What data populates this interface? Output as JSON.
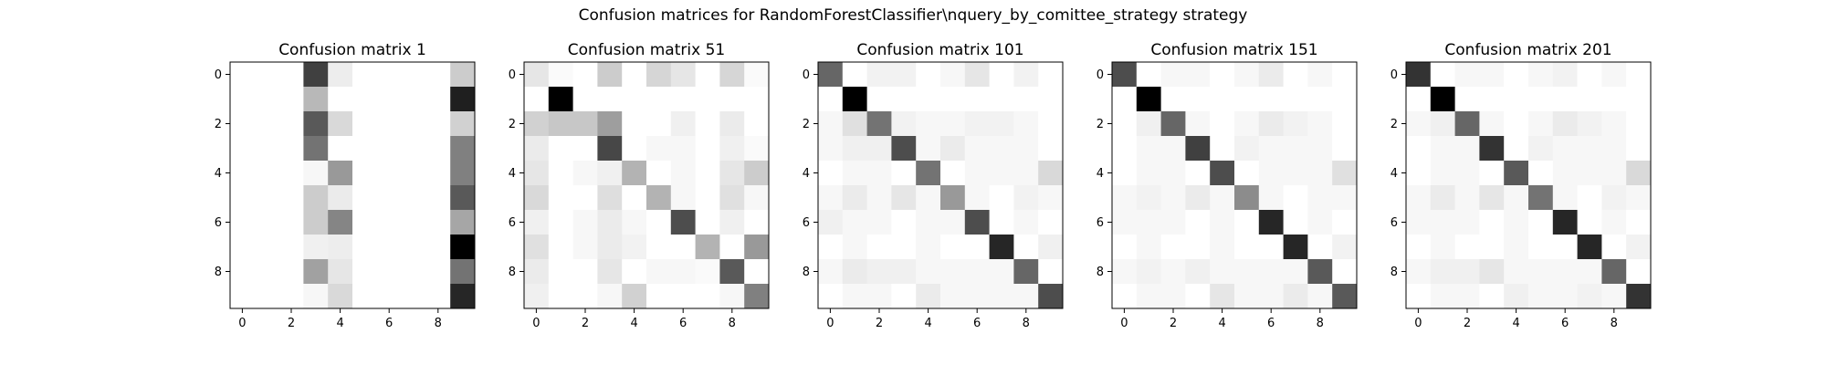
{
  "figure": {
    "title": "Confusion matrices for RandomForestClassifier\\nquery_by_comittee_strategy strategy"
  },
  "chart_data": [
    {
      "type": "heatmap",
      "title": "Confusion matrix 1",
      "colormap": "gray_r",
      "xticks": [
        0,
        2,
        4,
        6,
        8
      ],
      "yticks": [
        0,
        2,
        4,
        6,
        8
      ],
      "xlim": [
        -0.5,
        9.5
      ],
      "ylim": [
        9.5,
        -0.5
      ],
      "values": [
        [
          0,
          0,
          0,
          75,
          7,
          0,
          0,
          0,
          0,
          20
        ],
        [
          0,
          0,
          0,
          28,
          0,
          0,
          0,
          0,
          0,
          88
        ],
        [
          0,
          0,
          0,
          65,
          15,
          0,
          0,
          0,
          0,
          18
        ],
        [
          0,
          0,
          0,
          55,
          0,
          0,
          0,
          0,
          0,
          50
        ],
        [
          0,
          0,
          0,
          3,
          40,
          0,
          0,
          0,
          0,
          50
        ],
        [
          0,
          0,
          0,
          20,
          8,
          0,
          0,
          0,
          0,
          65
        ],
        [
          0,
          0,
          0,
          20,
          48,
          0,
          0,
          0,
          0,
          35
        ],
        [
          0,
          0,
          0,
          6,
          7,
          0,
          0,
          0,
          0,
          100
        ],
        [
          0,
          0,
          0,
          37,
          10,
          0,
          0,
          0,
          0,
          55
        ],
        [
          0,
          0,
          0,
          3,
          15,
          0,
          0,
          0,
          0,
          85
        ]
      ]
    },
    {
      "type": "heatmap",
      "title": "Confusion matrix 51",
      "colormap": "gray_r",
      "xticks": [
        0,
        2,
        4,
        6,
        8
      ],
      "yticks": [
        0,
        2,
        4,
        6,
        8
      ],
      "xlim": [
        -0.5,
        9.5
      ],
      "ylim": [
        9.5,
        -0.5
      ],
      "values": [
        [
          10,
          2,
          0,
          20,
          0,
          16,
          10,
          0,
          16,
          2
        ],
        [
          0,
          100,
          0,
          0,
          0,
          0,
          0,
          0,
          0,
          0
        ],
        [
          18,
          22,
          22,
          38,
          0,
          0,
          6,
          0,
          8,
          0
        ],
        [
          8,
          0,
          0,
          72,
          0,
          3,
          3,
          0,
          6,
          2
        ],
        [
          10,
          0,
          3,
          6,
          30,
          0,
          3,
          0,
          10,
          20
        ],
        [
          15,
          0,
          0,
          13,
          0,
          30,
          3,
          0,
          12,
          3
        ],
        [
          6,
          0,
          3,
          8,
          3,
          0,
          70,
          0,
          6,
          0
        ],
        [
          12,
          0,
          3,
          8,
          5,
          0,
          0,
          30,
          0,
          40
        ],
        [
          8,
          0,
          0,
          10,
          0,
          3,
          3,
          2,
          65,
          0
        ],
        [
          6,
          0,
          0,
          3,
          18,
          0,
          0,
          0,
          3,
          50
        ]
      ]
    },
    {
      "type": "heatmap",
      "title": "Confusion matrix 101",
      "colormap": "gray_r",
      "xticks": [
        0,
        2,
        4,
        6,
        8
      ],
      "yticks": [
        0,
        2,
        4,
        6,
        8
      ],
      "xlim": [
        -0.5,
        9.5
      ],
      "ylim": [
        9.5,
        -0.5
      ],
      "values": [
        [
          60,
          0,
          5,
          5,
          0,
          3,
          10,
          0,
          5,
          0
        ],
        [
          0,
          100,
          0,
          0,
          0,
          0,
          0,
          0,
          0,
          0
        ],
        [
          3,
          12,
          55,
          5,
          3,
          3,
          5,
          5,
          3,
          0
        ],
        [
          3,
          6,
          6,
          70,
          3,
          8,
          3,
          3,
          3,
          0
        ],
        [
          0,
          3,
          3,
          0,
          55,
          0,
          3,
          3,
          3,
          15
        ],
        [
          3,
          8,
          3,
          10,
          3,
          40,
          3,
          0,
          5,
          3
        ],
        [
          6,
          3,
          3,
          0,
          3,
          3,
          70,
          0,
          3,
          0
        ],
        [
          0,
          3,
          0,
          0,
          3,
          0,
          0,
          85,
          0,
          6
        ],
        [
          3,
          8,
          6,
          6,
          3,
          3,
          3,
          3,
          60,
          0
        ],
        [
          0,
          3,
          3,
          0,
          8,
          3,
          3,
          3,
          3,
          70
        ]
      ]
    },
    {
      "type": "heatmap",
      "title": "Confusion matrix 151",
      "colormap": "gray_r",
      "xticks": [
        0,
        2,
        4,
        6,
        8
      ],
      "yticks": [
        0,
        2,
        4,
        6,
        8
      ],
      "xlim": [
        -0.5,
        9.5
      ],
      "ylim": [
        9.5,
        -0.5
      ],
      "values": [
        [
          70,
          0,
          3,
          3,
          0,
          3,
          8,
          0,
          3,
          0
        ],
        [
          0,
          100,
          0,
          0,
          0,
          0,
          0,
          0,
          0,
          0
        ],
        [
          0,
          6,
          60,
          3,
          0,
          3,
          8,
          5,
          3,
          0
        ],
        [
          0,
          3,
          3,
          75,
          0,
          5,
          3,
          3,
          3,
          0
        ],
        [
          0,
          3,
          3,
          0,
          70,
          0,
          3,
          3,
          3,
          12
        ],
        [
          3,
          5,
          3,
          8,
          3,
          45,
          3,
          0,
          3,
          3
        ],
        [
          3,
          3,
          3,
          0,
          3,
          0,
          85,
          0,
          3,
          0
        ],
        [
          0,
          3,
          0,
          0,
          3,
          0,
          0,
          85,
          0,
          5
        ],
        [
          3,
          5,
          3,
          6,
          3,
          3,
          3,
          3,
          65,
          0
        ],
        [
          0,
          3,
          3,
          0,
          10,
          3,
          3,
          8,
          3,
          65
        ]
      ]
    },
    {
      "type": "heatmap",
      "title": "Confusion matrix 201",
      "colormap": "gray_r",
      "xticks": [
        0,
        2,
        4,
        6,
        8
      ],
      "yticks": [
        0,
        2,
        4,
        6,
        8
      ],
      "xlim": [
        -0.5,
        9.5
      ],
      "ylim": [
        9.5,
        -0.5
      ],
      "values": [
        [
          80,
          0,
          3,
          3,
          0,
          3,
          5,
          0,
          3,
          0
        ],
        [
          0,
          100,
          0,
          0,
          0,
          0,
          0,
          0,
          0,
          0
        ],
        [
          3,
          6,
          60,
          3,
          0,
          3,
          8,
          5,
          3,
          0
        ],
        [
          0,
          3,
          3,
          80,
          0,
          5,
          3,
          3,
          3,
          0
        ],
        [
          0,
          3,
          3,
          0,
          65,
          0,
          3,
          3,
          3,
          15
        ],
        [
          3,
          8,
          3,
          10,
          3,
          55,
          3,
          0,
          5,
          3
        ],
        [
          3,
          3,
          3,
          0,
          3,
          0,
          85,
          0,
          3,
          0
        ],
        [
          0,
          3,
          0,
          0,
          3,
          0,
          0,
          85,
          0,
          5
        ],
        [
          3,
          6,
          6,
          10,
          3,
          3,
          3,
          3,
          60,
          0
        ],
        [
          0,
          3,
          3,
          0,
          6,
          3,
          3,
          5,
          3,
          80
        ]
      ]
    }
  ]
}
